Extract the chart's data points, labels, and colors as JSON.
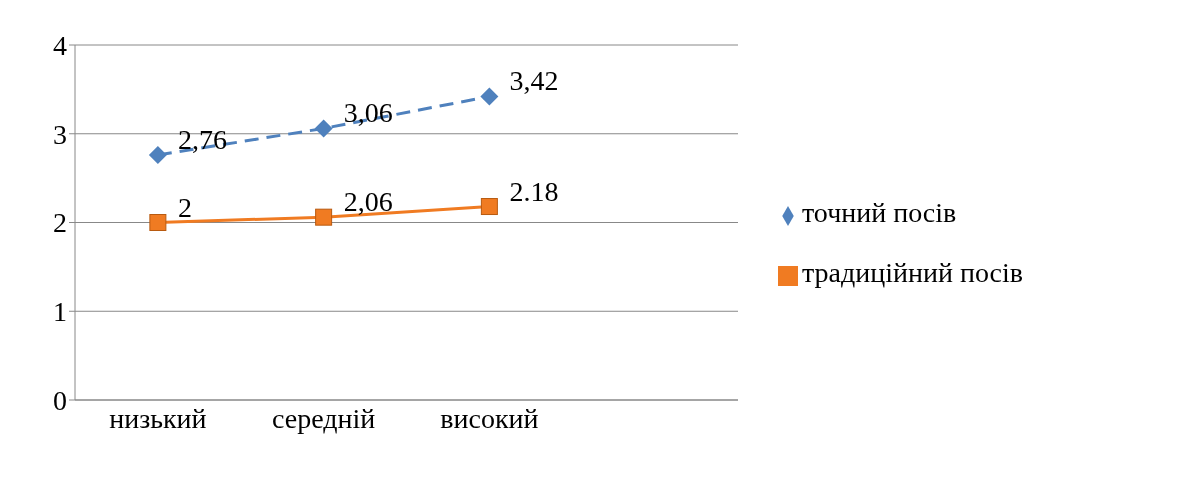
{
  "chart_data": {
    "type": "line",
    "categories": [
      "низький",
      "середній",
      "високий",
      null
    ],
    "series": [
      {
        "name": "точний посів",
        "color": "#4f81bd",
        "values": [
          2.76,
          3.06,
          3.42,
          null
        ],
        "value_labels": [
          "2,76",
          "3,06",
          "3,42",
          null
        ],
        "marker": "diamond",
        "line_style": "dashed"
      },
      {
        "name": "традиційний посів",
        "color": "#f07b22",
        "values": [
          2,
          2.06,
          2.18,
          null
        ],
        "value_labels": [
          "2",
          "2,06",
          "2.18",
          null
        ],
        "marker": "square",
        "line_style": "solid"
      }
    ],
    "ylim": [
      0,
      4
    ],
    "yticks": [
      0,
      1,
      2,
      3,
      4
    ],
    "grid": "y",
    "legend": "right"
  }
}
